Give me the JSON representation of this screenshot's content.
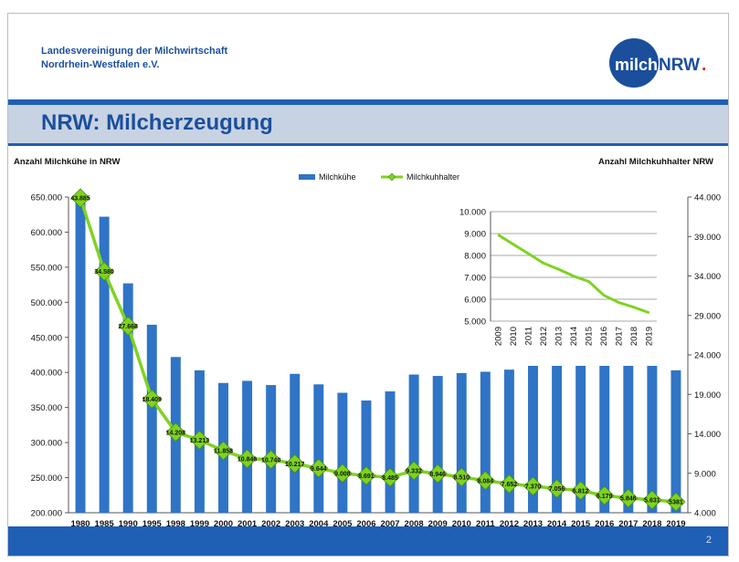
{
  "header": {
    "org_line1": "Landesvereinigung der Milchwirtschaft",
    "org_line2": "Nordrhein-Westfalen e.V.",
    "logo_word1": "milch",
    "logo_word2": "NRW",
    "logo_dot": "."
  },
  "title": "NRW: Milcherzeugung",
  "page_number": "2",
  "colors": {
    "bar": "#2f74c6",
    "line": "#7ed321",
    "marker": "#7ed321",
    "brand": "#1b4f9c",
    "band": "#1f5fb5",
    "logo_dot": "#e2231a"
  },
  "chart_data": [
    {
      "type": "bar",
      "ylabel": "Anzahl Milchkühe in NRW",
      "y2label": "Anzahl Milchkuhhalter NRW",
      "legend": [
        "Milchkühe",
        "Milchkuhhalter"
      ],
      "legend_position": "top-center",
      "categories": [
        "1980",
        "1985",
        "1990",
        "1995",
        "1998",
        "1999",
        "2000",
        "2001",
        "2002",
        "2003",
        "2004",
        "2005",
        "2006",
        "2007",
        "2008",
        "2009",
        "2010",
        "2011",
        "2012",
        "2013",
        "2014",
        "2015",
        "2016",
        "2017",
        "2018",
        "2019"
      ],
      "ylim": [
        200000,
        650000
      ],
      "yticks": [
        "200.000",
        "250.000",
        "300.000",
        "350.000",
        "400.000",
        "450.000",
        "500.000",
        "550.000",
        "600.000",
        "650.000"
      ],
      "y2lim": [
        4000,
        44000
      ],
      "y2ticks": [
        "4.000",
        "9.000",
        "14.000",
        "19.000",
        "24.000",
        "29.000",
        "34.000",
        "39.000",
        "44.000"
      ],
      "series": [
        {
          "name": "Milchkühe",
          "type": "bar",
          "axis": "left",
          "values": [
            648000,
            622000,
            527000,
            468000,
            422000,
            403000,
            385000,
            388000,
            382000,
            398000,
            383000,
            371000,
            360000,
            373000,
            397000,
            395000,
            399000,
            401000,
            404000,
            419000,
            421000,
            423000,
            419000,
            419000,
            411000,
            403000
          ]
        },
        {
          "name": "Milchkuhhalter",
          "type": "line",
          "axis": "right",
          "values": [
            43885,
            34580,
            27668,
            18409,
            14208,
            13213,
            11858,
            10846,
            10740,
            10217,
            9644,
            9008,
            8691,
            8485,
            9332,
            8946,
            8510,
            8084,
            7652,
            7370,
            7056,
            6812,
            6179,
            5846,
            5631,
            5381
          ],
          "labels": [
            "43.885",
            "34.580",
            "27.668",
            "18.409",
            "14.208",
            "13.213",
            "11.858",
            "10.846",
            "10.740",
            "10.217",
            "9.644",
            "9.008",
            "8.691",
            "8.485",
            "9.332",
            "8.946",
            "8.510",
            "8.084",
            "7.652",
            "7.370",
            "7.056",
            "6.812",
            "6.179",
            "5.846",
            "5.631",
            "5381"
          ]
        }
      ]
    },
    {
      "type": "line",
      "placement": "inset-top-right",
      "categories": [
        "2009",
        "2010",
        "2011",
        "2012",
        "2013",
        "2014",
        "2015",
        "2016",
        "2017",
        "2018",
        "2019"
      ],
      "ylim": [
        5000,
        10000
      ],
      "yticks": [
        "5.000",
        "6.000",
        "7.000",
        "8.000",
        "9.000",
        "10.000"
      ],
      "grid": true,
      "series": [
        {
          "values": [
            8946,
            8510,
            8084,
            7652,
            7370,
            7056,
            6812,
            6179,
            5846,
            5631,
            5381
          ]
        }
      ]
    }
  ]
}
